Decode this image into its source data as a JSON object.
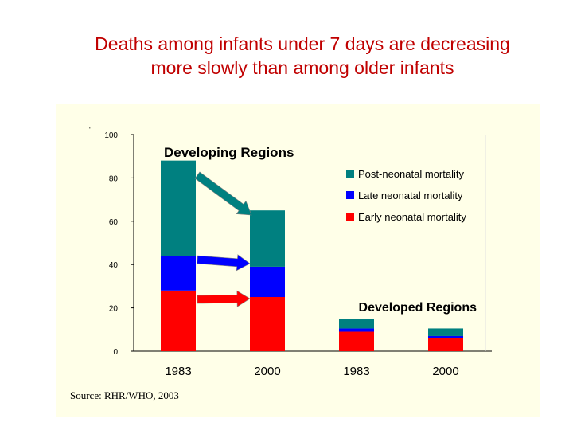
{
  "title": {
    "line1": "Deaths among infants under 7 days are decreasing",
    "line2": "more slowly than among older infants"
  },
  "source": "Source: RHR/WHO, 2003",
  "colors": {
    "post": "#008080",
    "late": "#0000ff",
    "early": "#ff0000",
    "title": "#c00000",
    "panel": "#ffffe8"
  },
  "chart_data": {
    "type": "bar",
    "stacked": true,
    "ylim": [
      0,
      100
    ],
    "yticks": [
      0,
      20,
      40,
      60,
      80,
      100
    ],
    "categories": [
      "1983",
      "2000",
      "1983",
      "2000"
    ],
    "groups": [
      {
        "label": "Developing Regions",
        "categories": [
          0,
          1
        ]
      },
      {
        "label": "Developed Regions",
        "categories": [
          2,
          3
        ]
      }
    ],
    "series": [
      {
        "name": "Early neonatal mortality",
        "values": [
          28,
          25,
          9,
          6
        ]
      },
      {
        "name": "Late neonatal mortality",
        "values": [
          16,
          14,
          1.5,
          1
        ]
      },
      {
        "name": "Post-neonatal mortality",
        "values": [
          44,
          26,
          4.5,
          3.5
        ]
      }
    ],
    "legend": [
      "Post-neonatal mortality",
      "Late neonatal mortality",
      "Early neonatal mortality"
    ],
    "legend_position": "top-right",
    "annotations": [
      "arrows from Developing 1983 to Developing 2000 for each component"
    ]
  }
}
